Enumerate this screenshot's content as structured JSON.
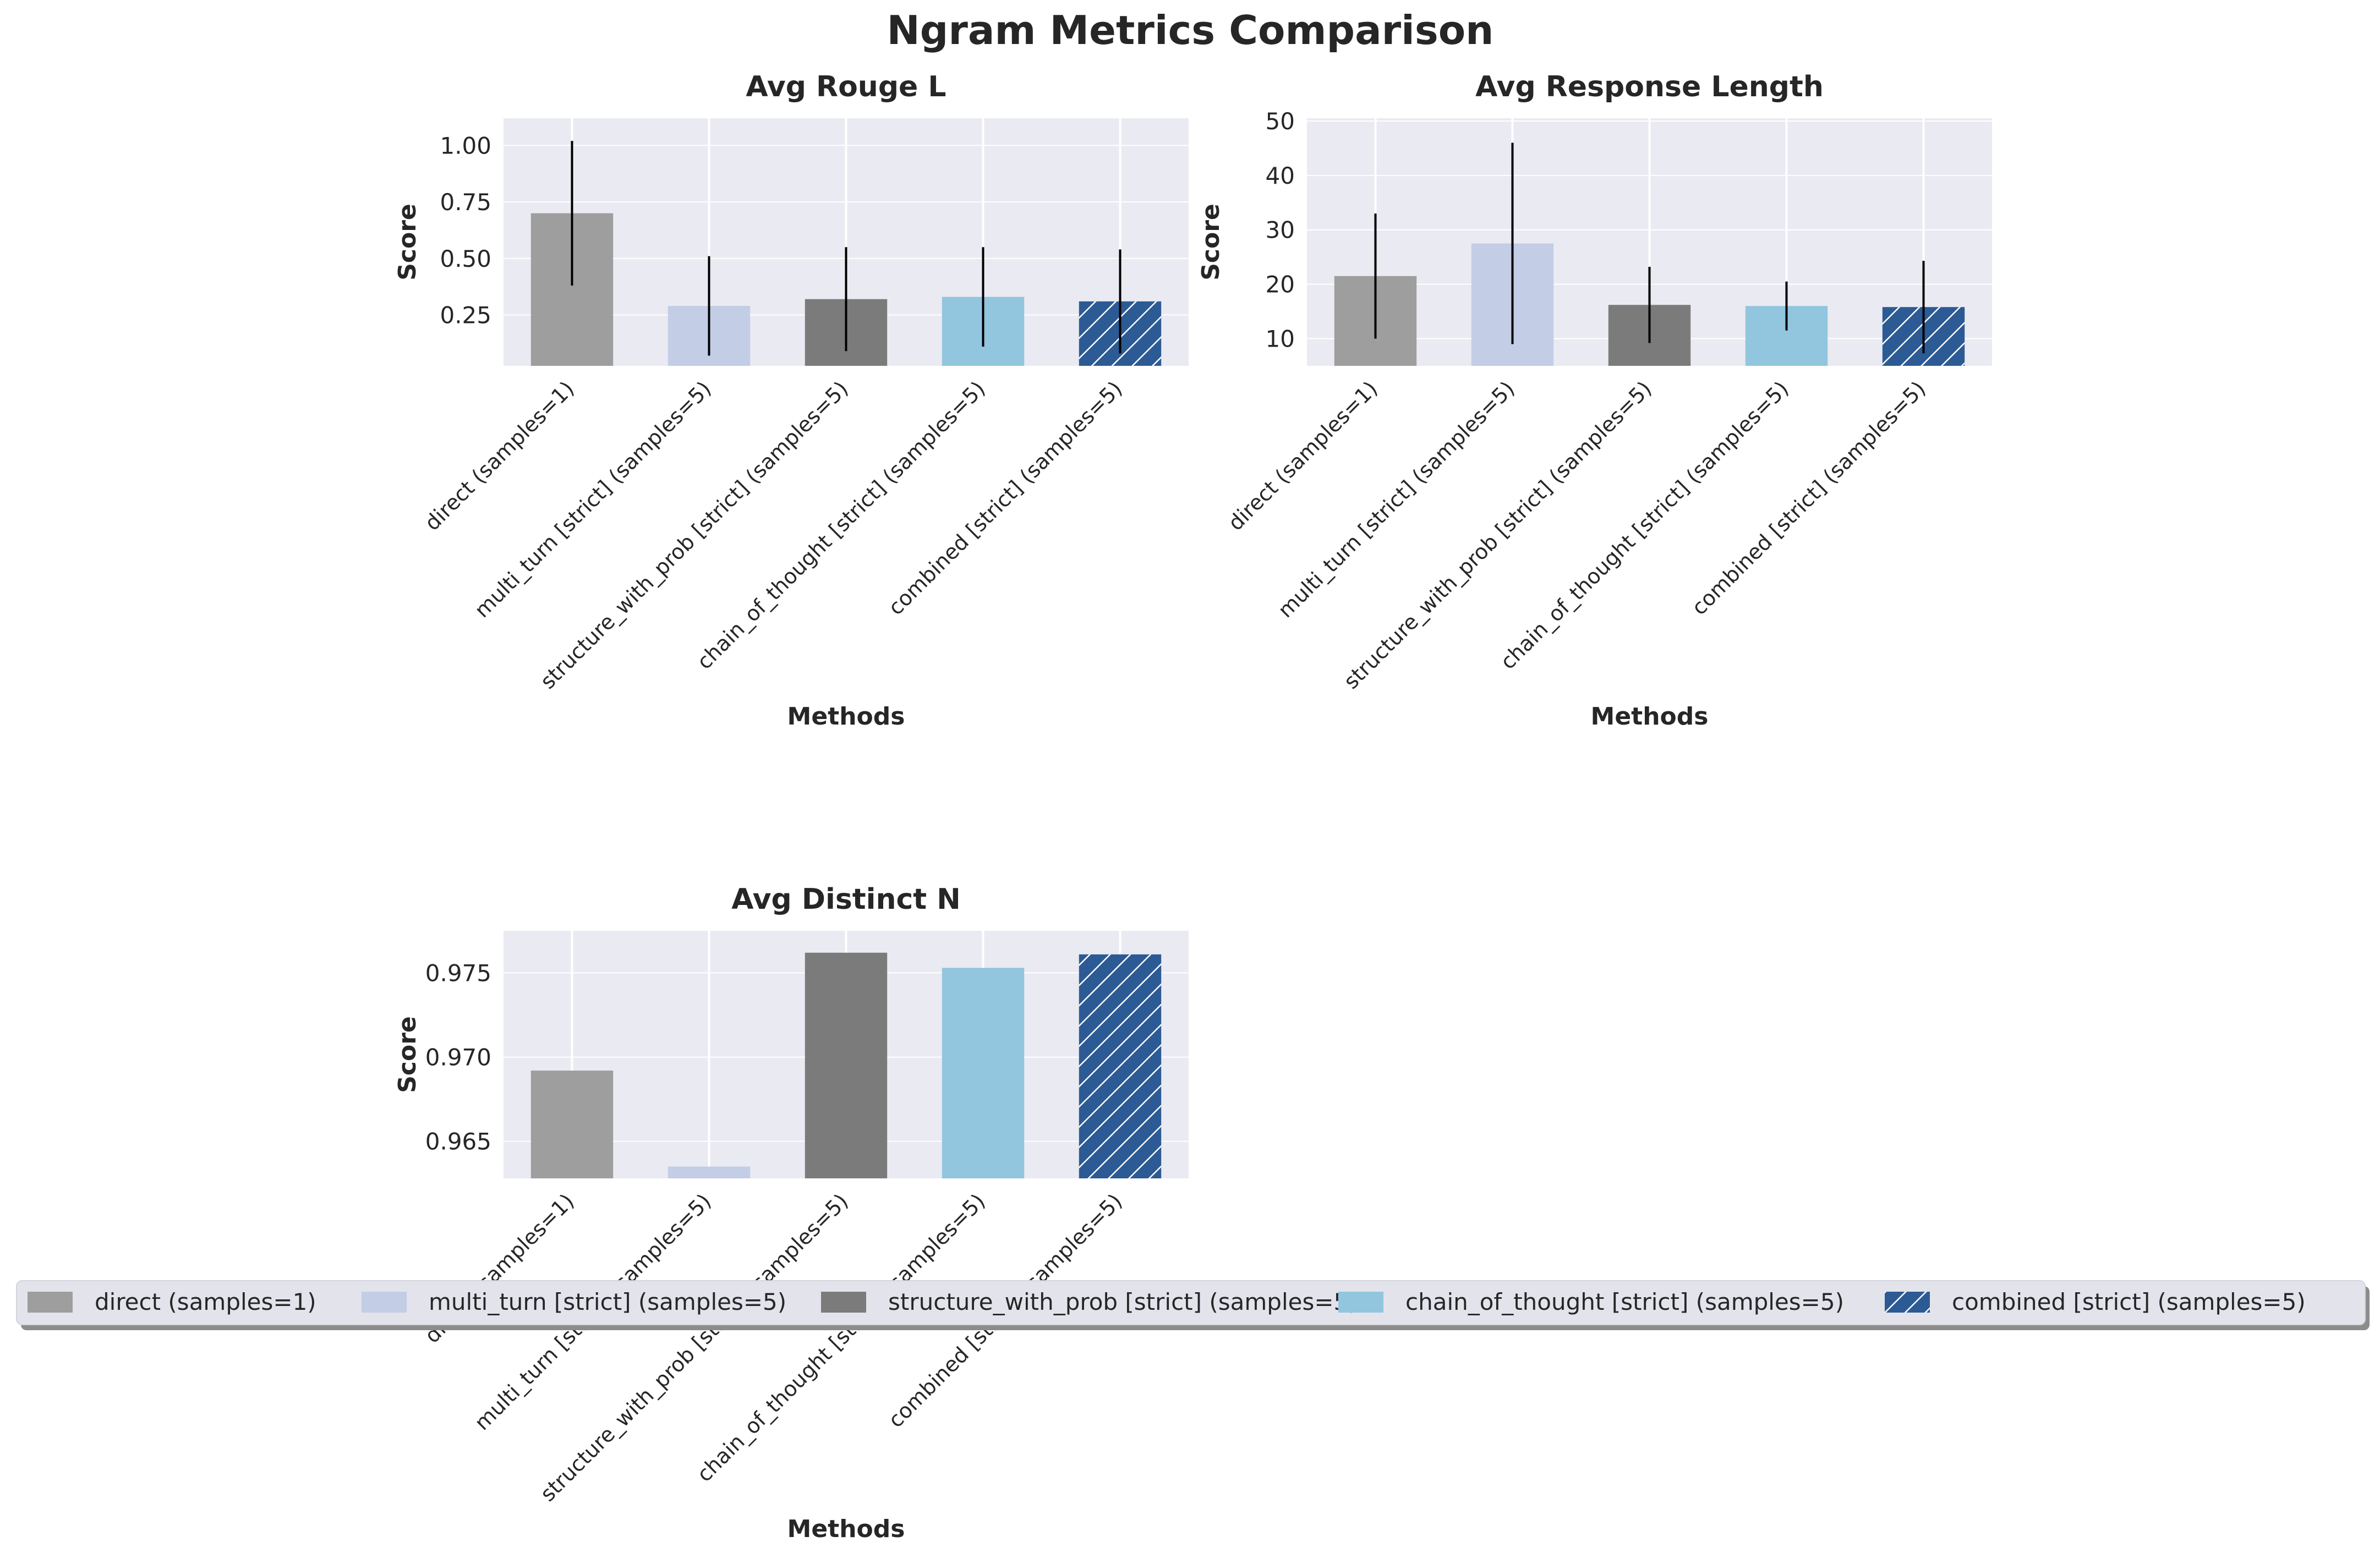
{
  "figure_title": "Ngram Metrics Comparison",
  "chart_data": [
    {
      "type": "bar",
      "title": "Avg Rouge L",
      "xlabel": "Methods",
      "ylabel": "Score",
      "categories": [
        "direct (samples=1)",
        "multi_turn [strict] (samples=5)",
        "structure_with_prob [strict] (samples=5)",
        "chain_of_thought [strict] (samples=5)",
        "combined [strict] (samples=5)"
      ],
      "values": [
        0.7,
        0.29,
        0.32,
        0.33,
        0.31
      ],
      "errors": [
        0.32,
        0.22,
        0.23,
        0.22,
        0.23
      ],
      "yticks": [
        0.25,
        0.5,
        0.75,
        1.0
      ],
      "ytick_labels": [
        "0.25",
        "0.50",
        "0.75",
        "1.00"
      ],
      "ylim": [
        0.025,
        1.12
      ],
      "grid": true
    },
    {
      "type": "bar",
      "title": "Avg Response Length",
      "xlabel": "Methods",
      "ylabel": "Score",
      "categories": [
        "direct (samples=1)",
        "multi_turn [strict] (samples=5)",
        "structure_with_prob [strict] (samples=5)",
        "chain_of_thought [strict] (samples=5)",
        "combined [strict] (samples=5)"
      ],
      "values": [
        21.5,
        27.5,
        16.2,
        16.0,
        15.8
      ],
      "errors": [
        11.5,
        18.5,
        7.0,
        4.5,
        8.5
      ],
      "yticks": [
        10,
        20,
        30,
        40,
        50
      ],
      "ytick_labels": [
        "10",
        "20",
        "30",
        "40",
        "50"
      ],
      "ylim": [
        5,
        50.5
      ],
      "grid": true
    },
    {
      "type": "bar",
      "title": "Avg Distinct N",
      "xlabel": "Methods",
      "ylabel": "Score",
      "categories": [
        "direct (samples=1)",
        "multi_turn [strict] (samples=5)",
        "structure_with_prob [strict] (samples=5)",
        "chain_of_thought [strict] (samples=5)",
        "combined [strict] (samples=5)"
      ],
      "values": [
        0.9692,
        0.9635,
        0.9762,
        0.9753,
        0.9761
      ],
      "errors": [
        0,
        0,
        0,
        0,
        0
      ],
      "yticks": [
        0.965,
        0.97,
        0.975
      ],
      "ytick_labels": [
        "0.965",
        "0.970",
        "0.975"
      ],
      "ylim": [
        0.9628,
        0.9775
      ],
      "grid": true
    }
  ],
  "legend": {
    "placement": "bottom-center",
    "entries": [
      {
        "label": "direct (samples=1)",
        "color": "#9e9e9e",
        "hatch": false
      },
      {
        "label": "multi_turn [strict] (samples=5)",
        "color": "#c3cde6",
        "hatch": false
      },
      {
        "label": "structure_with_prob [strict] (samples=5)",
        "color": "#7b7b7b",
        "hatch": false
      },
      {
        "label": "chain_of_thought [strict] (samples=5)",
        "color": "#92c5de",
        "hatch": false
      },
      {
        "label": "combined [strict] (samples=5)",
        "color": "#2c5a94",
        "hatch": true
      }
    ]
  },
  "colors": {
    "axes_background": "#eaeaf2",
    "grid": "#ffffff",
    "error_bar": "#000000",
    "hatch_line": "#ffffff"
  }
}
